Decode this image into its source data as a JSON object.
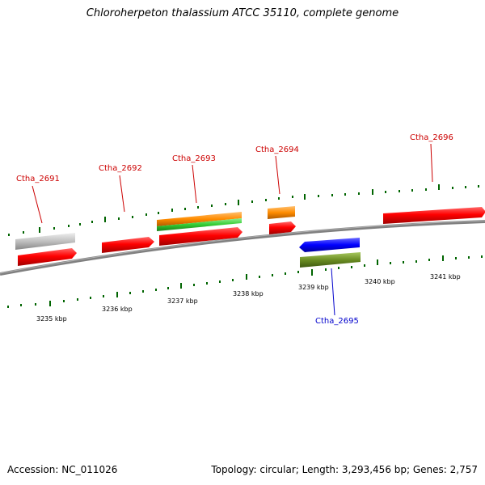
{
  "title": "Chloroherpeton thalassium ATCC 35110, complete genome",
  "footer": {
    "accession": "Accession: NC_011026",
    "stats": "Topology: circular; Length: 3,293,456 bp; Genes: 2,757"
  },
  "scale_labels": [
    "3235 kbp",
    "3236 kbp",
    "3237 kbp",
    "3238 kbp",
    "3239 kbp",
    "3240 kbp",
    "3241 kbp"
  ],
  "gene_labels": [
    {
      "id": "Ctha_2691",
      "text": "Ctha_2691",
      "strand": "forward"
    },
    {
      "id": "Ctha_2692",
      "text": "Ctha_2692",
      "strand": "forward"
    },
    {
      "id": "Ctha_2693",
      "text": "Ctha_2693",
      "strand": "forward"
    },
    {
      "id": "Ctha_2694",
      "text": "Ctha_2694",
      "strand": "forward"
    },
    {
      "id": "Ctha_2695",
      "text": "Ctha_2695",
      "strand": "reverse"
    },
    {
      "id": "Ctha_2696",
      "text": "Ctha_2696",
      "strand": "forward"
    }
  ],
  "colors": {
    "cds": "#ff0000",
    "forward_label": "#cc0000",
    "reverse_label": "#0000cc",
    "reverse_cds": "#0000ff",
    "gene_orange": "#ff8c00",
    "gene_green": "#33cc33",
    "gene_olive": "#6b8e23",
    "gene_gray": "#c0c0c0",
    "tick": "#006400",
    "backbone": "#808080"
  }
}
